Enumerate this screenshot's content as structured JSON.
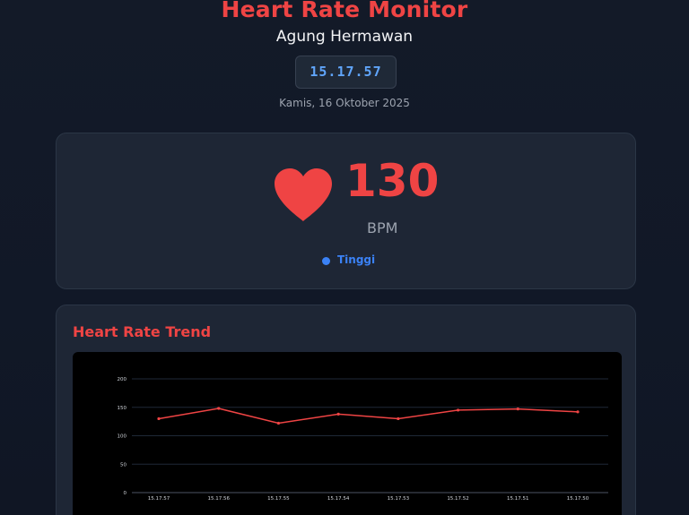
{
  "header": {
    "title": "Heart Rate Monitor",
    "user_name": "Agung Hermawan",
    "clock": "15.17.57",
    "date": "Kamis, 16 Oktober 2025"
  },
  "monitor": {
    "bpm": "130",
    "unit": "BPM",
    "status": "Tinggi",
    "icon": "heart-icon",
    "colors": {
      "accent": "#ef4444",
      "status": "#3b82f6"
    }
  },
  "trend": {
    "title": "Heart Rate Trend"
  },
  "chart_data": {
    "type": "line",
    "x": [
      "15.17.57",
      "15.17.56",
      "15.17.55",
      "15.17.54",
      "15.17.53",
      "15.17.52",
      "15.17.51",
      "15.17.50"
    ],
    "series": [
      {
        "values": [
          130,
          148,
          122,
          138,
          130,
          145,
          147,
          142
        ],
        "color": "#ef4444"
      }
    ],
    "ylim": [
      0,
      200
    ],
    "yticks": [
      0,
      50,
      100,
      150,
      200
    ],
    "grid": true,
    "legend": "none"
  }
}
